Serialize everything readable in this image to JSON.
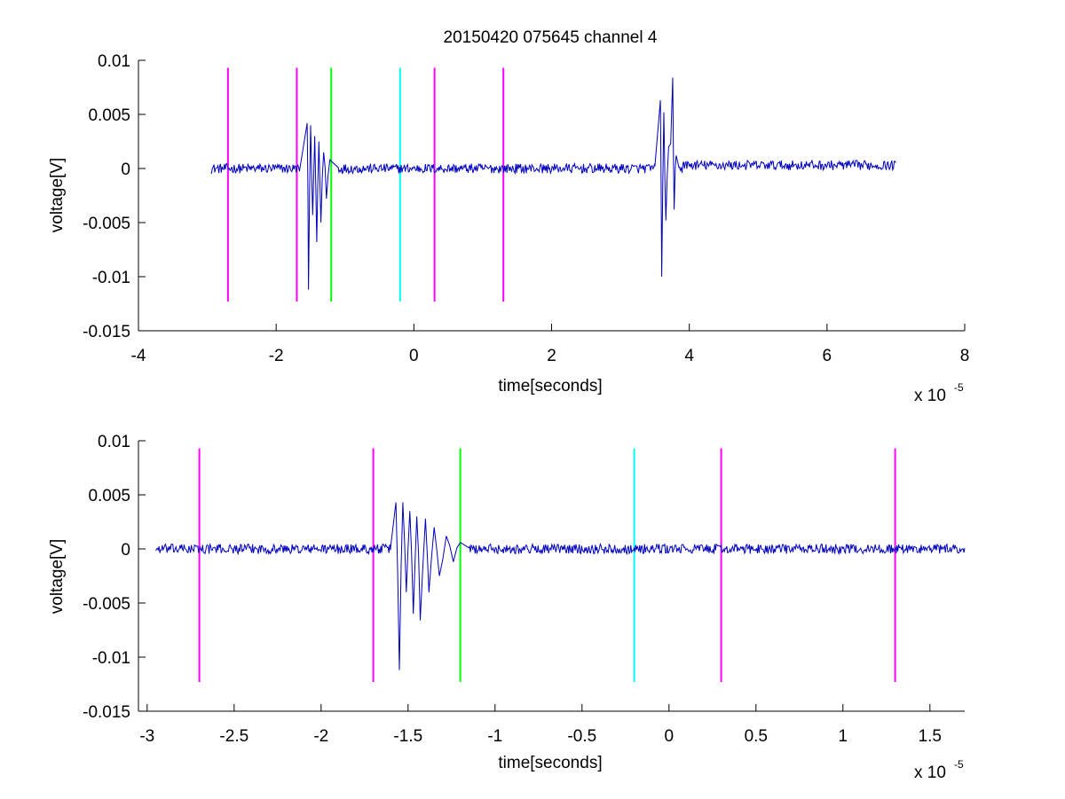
{
  "figure": {
    "title": "20150420 075645 channel 4"
  },
  "chart_data": [
    {
      "type": "line",
      "title": "20150420 075645 channel 4",
      "xlabel": "time[seconds]",
      "ylabel": "voltage[V]",
      "x_multiplier_label": "x 10",
      "x_multiplier_exponent": "-5",
      "xlim": [
        -4,
        8
      ],
      "ylim": [
        -0.015,
        0.01
      ],
      "xticks": [
        -4,
        -2,
        0,
        2,
        4,
        6,
        8
      ],
      "xtick_labels": [
        "-4",
        "-2",
        "0",
        "2",
        "4",
        "6",
        "8"
      ],
      "yticks": [
        0.01,
        0.005,
        0,
        -0.005,
        -0.01,
        -0.015
      ],
      "ytick_labels": [
        "0.01",
        "0.005",
        "0",
        "-0.005",
        "-0.01",
        "-0.015"
      ],
      "grid": false,
      "signal": {
        "color": "#0000bb",
        "x_range": [
          -2.95,
          7.0
        ],
        "bursts": [
          {
            "x_range": [
              -1.65,
              -1.1
            ],
            "points": [
              [
                -1.55,
                0.0042
              ],
              [
                -1.53,
                -0.0112
              ],
              [
                -1.5,
                0.004
              ],
              [
                -1.47,
                -0.0043
              ],
              [
                -1.44,
                0.003
              ],
              [
                -1.41,
                -0.0068
              ],
              [
                -1.38,
                0.0025
              ],
              [
                -1.35,
                -0.005
              ],
              [
                -1.31,
                0.0015
              ],
              [
                -1.27,
                -0.0028
              ],
              [
                -1.22,
                0.0008
              ]
            ]
          },
          {
            "x_range": [
              3.5,
              3.85
            ],
            "points": [
              [
                3.58,
                0.0063
              ],
              [
                3.6,
                -0.01
              ],
              [
                3.63,
                0.0052
              ],
              [
                3.66,
                -0.0048
              ],
              [
                3.7,
                0.002
              ],
              [
                3.76,
                0.0084
              ],
              [
                3.78,
                -0.0038
              ],
              [
                3.81,
                0.0012
              ]
            ]
          }
        ]
      },
      "markers": [
        {
          "x": -2.7,
          "color": "#ff00ff",
          "y_range": [
            -0.0123,
            0.0093
          ]
        },
        {
          "x": -1.7,
          "color": "#ff00ff",
          "y_range": [
            -0.0123,
            0.0093
          ]
        },
        {
          "x": -1.2,
          "color": "#00ff00",
          "y_range": [
            -0.0123,
            0.0093
          ]
        },
        {
          "x": -0.2,
          "color": "#00ffff",
          "y_range": [
            -0.0123,
            0.0093
          ]
        },
        {
          "x": 0.3,
          "color": "#ff00ff",
          "y_range": [
            -0.0123,
            0.0093
          ]
        },
        {
          "x": 1.3,
          "color": "#ff00ff",
          "y_range": [
            -0.0123,
            0.0093
          ]
        }
      ]
    },
    {
      "type": "line",
      "xlabel": "time[seconds]",
      "ylabel": "voltage[V]",
      "x_multiplier_label": "x 10",
      "x_multiplier_exponent": "-5",
      "xlim": [
        -3.05,
        1.7
      ],
      "ylim": [
        -0.015,
        0.01
      ],
      "xticks": [
        -3,
        -2.5,
        -2,
        -1.5,
        -1,
        -0.5,
        0,
        0.5,
        1,
        1.5
      ],
      "xtick_labels": [
        "-3",
        "-2.5",
        "-2",
        "-1.5",
        "-1",
        "-0.5",
        "0",
        "0.5",
        "1",
        "1.5"
      ],
      "yticks": [
        0.01,
        0.005,
        0,
        -0.005,
        -0.01,
        -0.015
      ],
      "ytick_labels": [
        "0.01",
        "0.005",
        "0",
        "-0.005",
        "-0.01",
        "-0.015"
      ],
      "grid": false,
      "signal": {
        "color": "#0000bb",
        "x_range": [
          -2.95,
          1.7
        ],
        "bursts": [
          {
            "x_range": [
              -1.6,
              -1.15
            ],
            "points": [
              [
                -1.57,
                0.0043
              ],
              [
                -1.55,
                -0.0112
              ],
              [
                -1.53,
                0.0043
              ],
              [
                -1.51,
                -0.004
              ],
              [
                -1.49,
                0.0035
              ],
              [
                -1.47,
                -0.006
              ],
              [
                -1.45,
                0.003
              ],
              [
                -1.43,
                -0.0066
              ],
              [
                -1.4,
                0.0028
              ],
              [
                -1.38,
                -0.004
              ],
              [
                -1.35,
                0.002
              ],
              [
                -1.32,
                -0.0025
              ],
              [
                -1.28,
                0.0012
              ],
              [
                -1.24,
                -0.0012
              ],
              [
                -1.2,
                0.0006
              ]
            ]
          }
        ]
      },
      "markers": [
        {
          "x": -2.7,
          "color": "#ff00ff",
          "y_range": [
            -0.0123,
            0.0093
          ]
        },
        {
          "x": -1.7,
          "color": "#ff00ff",
          "y_range": [
            -0.0123,
            0.0093
          ]
        },
        {
          "x": -1.2,
          "color": "#00ff00",
          "y_range": [
            -0.0123,
            0.0093
          ]
        },
        {
          "x": -0.2,
          "color": "#00ffff",
          "y_range": [
            -0.0123,
            0.0093
          ]
        },
        {
          "x": 0.3,
          "color": "#ff00ff",
          "y_range": [
            -0.0123,
            0.0093
          ]
        },
        {
          "x": 1.3,
          "color": "#ff00ff",
          "y_range": [
            -0.0123,
            0.0093
          ]
        }
      ]
    }
  ]
}
